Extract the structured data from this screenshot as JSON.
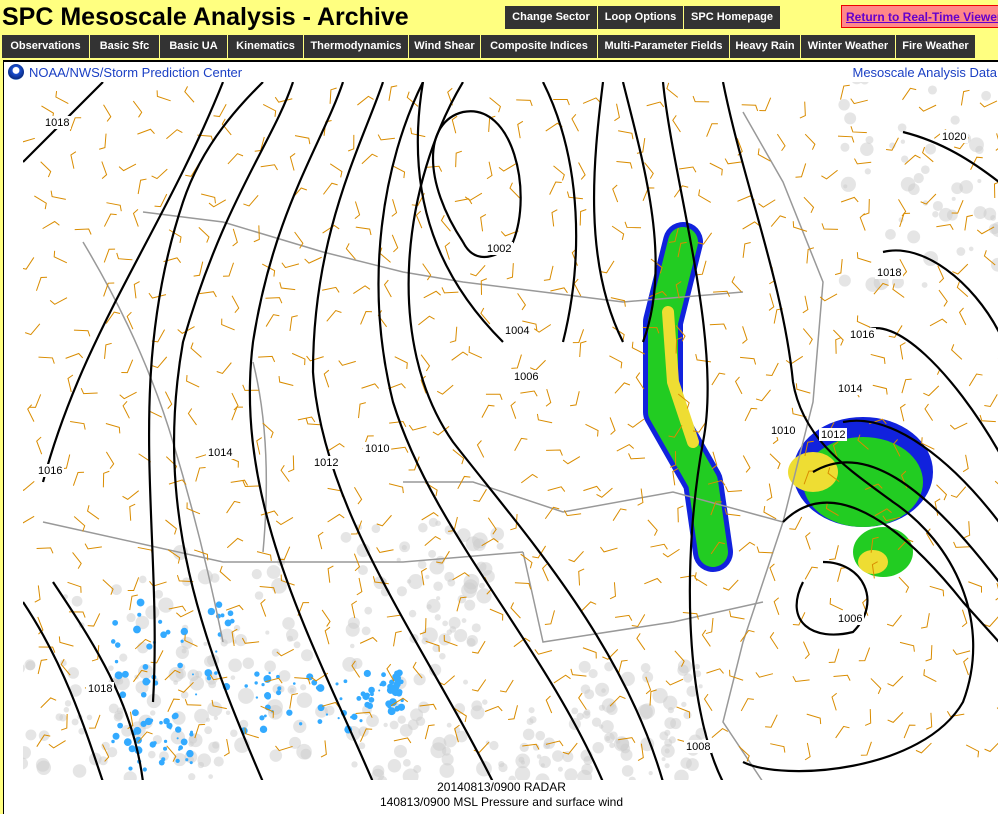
{
  "title": "SPC Mesoscale Analysis - Archive",
  "top_buttons": [
    "Change Sector",
    "Loop Options",
    "SPC Homepage"
  ],
  "realtime_link": "Return to Real-Time Viewer",
  "nav": [
    "Observations",
    "Basic Sfc",
    "Basic UA",
    "Kinematics",
    "Thermodynamics",
    "Wind Shear",
    "Composite Indices",
    "Multi-Parameter Fields",
    "Heavy Rain",
    "Winter Weather",
    "Fire Weather"
  ],
  "map": {
    "header_left": "NOAA/NWS/Storm Prediction Center",
    "header_right": "Mesoscale Analysis Data",
    "caption_line1": "20140813/0900 RADAR",
    "caption_line2": "140813/0900 MSL Pressure and surface wind",
    "isobar_labels": [
      "1018",
      "1002",
      "1004",
      "1006",
      "1010",
      "1012",
      "1014",
      "1016",
      "1018",
      "1008",
      "1006",
      "1010",
      "1012",
      "1014",
      "1016",
      "1018",
      "1020"
    ],
    "colors": {
      "isobar": "#000000",
      "wind_barb": "#d98c00",
      "borders": "#999999",
      "radar_light": "#33aaff",
      "radar_green": "#22cc22",
      "radar_yellow": "#eedd33",
      "radar_blue": "#1122dd"
    }
  }
}
